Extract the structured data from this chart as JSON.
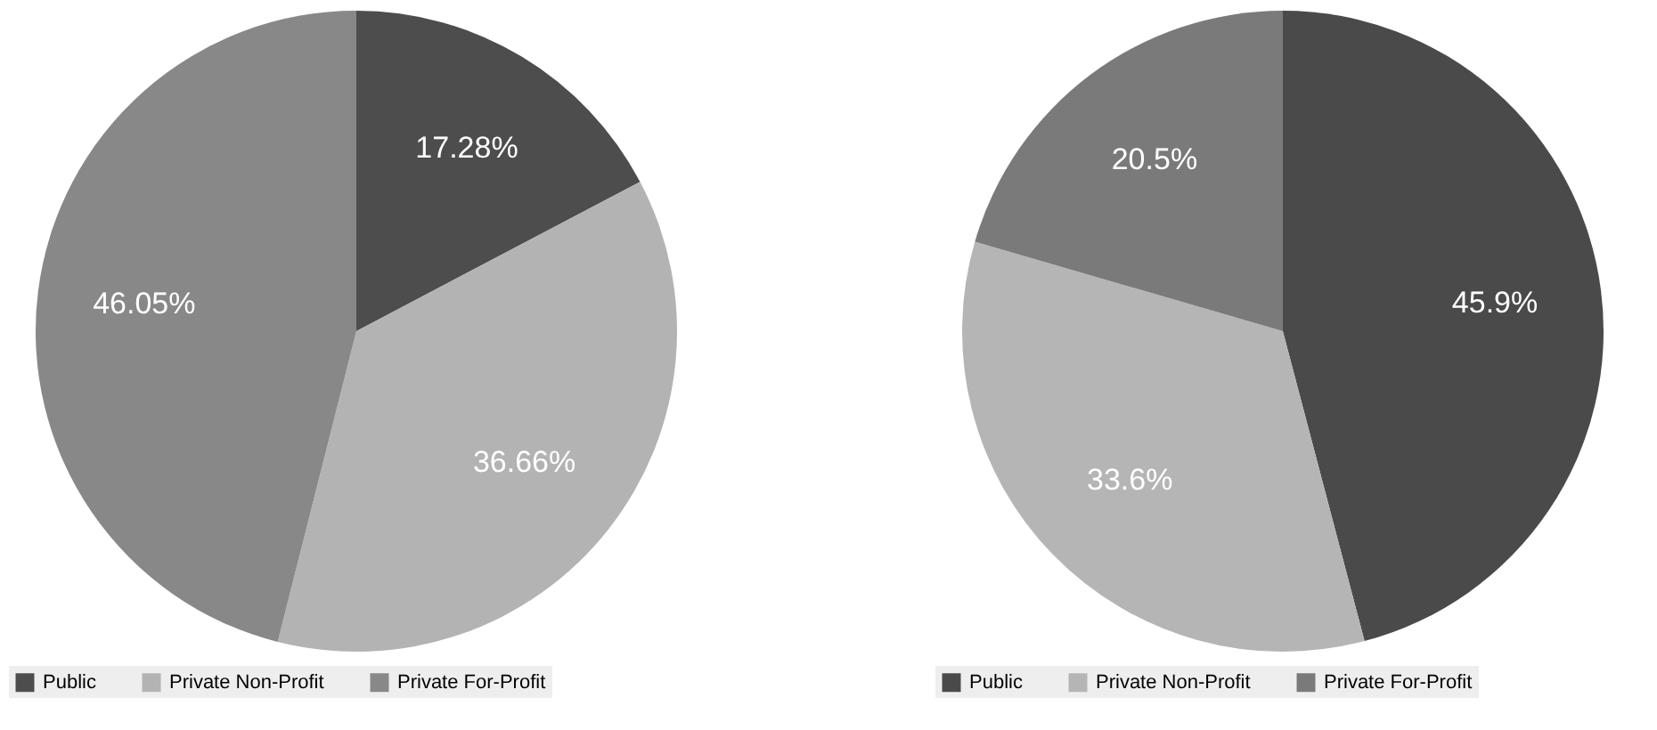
{
  "chart_data": [
    {
      "type": "pie",
      "categories": [
        "Public",
        "Private Non-Profit",
        "Private For-Profit"
      ],
      "values": [
        17.28,
        36.66,
        46.05
      ],
      "value_labels": [
        "17.28%",
        "36.66%",
        "46.05%"
      ],
      "colors": [
        "#4d4d4d",
        "#b3b3b3",
        "#888888"
      ],
      "legend": "bottom"
    },
    {
      "type": "pie",
      "categories": [
        "Public",
        "Private Non-Profit",
        "Private For-Profit"
      ],
      "values": [
        45.9,
        33.6,
        20.5
      ],
      "value_labels": [
        "45.9%",
        "33.6%",
        "20.5%"
      ],
      "colors": [
        "#4a4a4a",
        "#b5b5b5",
        "#7a7a7a"
      ],
      "legend": "bottom"
    }
  ]
}
